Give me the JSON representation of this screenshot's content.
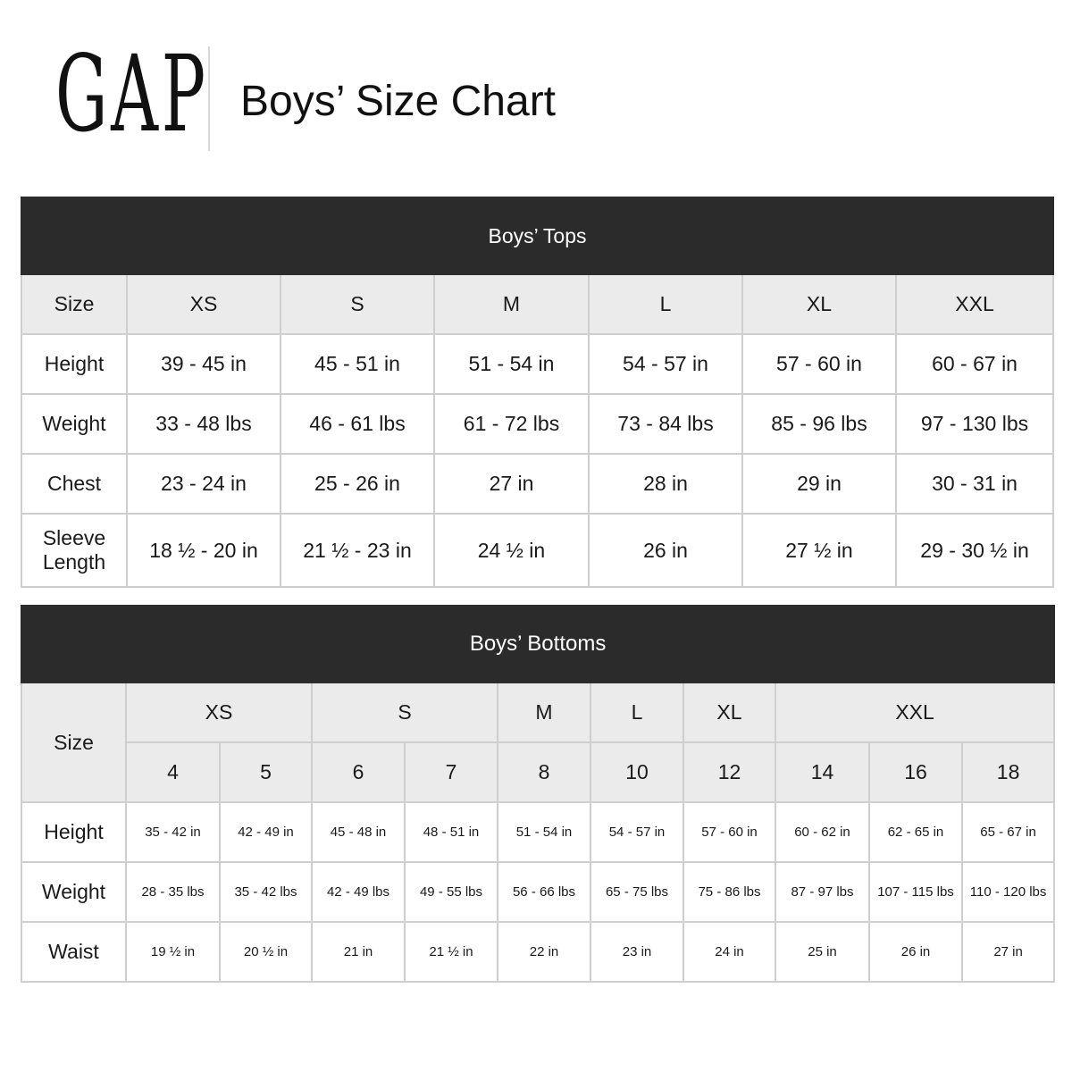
{
  "header": {
    "logo_text": "GAP",
    "title": "Boys’ Size Chart"
  },
  "tops": {
    "title": "Boys’ Tops",
    "columns": [
      "Size",
      "XS",
      "S",
      "M",
      "L",
      "XL",
      "XXL"
    ],
    "rows": [
      {
        "label": "Height",
        "values": [
          "39 - 45 in",
          "45 - 51 in",
          "51 - 54 in",
          "54 - 57 in",
          "57 - 60 in",
          "60 - 67 in"
        ]
      },
      {
        "label": "Weight",
        "values": [
          "33 - 48 lbs",
          "46 - 61 lbs",
          "61 - 72 lbs",
          "73 - 84 lbs",
          "85 - 96 lbs",
          "97 - 130 lbs"
        ]
      },
      {
        "label": "Chest",
        "values": [
          "23 - 24 in",
          "25 - 26 in",
          "27 in",
          "28 in",
          "29 in",
          "30 - 31 in"
        ]
      },
      {
        "label": "Sleeve Length",
        "values": [
          "18 ½ - 20 in",
          "21 ½ - 23 in",
          "24 ½ in",
          "26 in",
          "27 ½ in",
          "29 - 30 ½ in"
        ]
      }
    ]
  },
  "bottoms": {
    "title": "Boys’ Bottoms",
    "size_label": "Size",
    "size_groups": [
      {
        "label": "XS",
        "span": 2
      },
      {
        "label": "S",
        "span": 2
      },
      {
        "label": "M",
        "span": 1
      },
      {
        "label": "L",
        "span": 1
      },
      {
        "label": "XL",
        "span": 1
      },
      {
        "label": "XXL",
        "span": 3
      }
    ],
    "numeric_sizes": [
      "4",
      "5",
      "6",
      "7",
      "8",
      "10",
      "12",
      "14",
      "16",
      "18"
    ],
    "rows": [
      {
        "label": "Height",
        "values": [
          "35 - 42 in",
          "42 - 49 in",
          "45 - 48 in",
          "48 - 51 in",
          "51 - 54 in",
          "54 - 57 in",
          "57 - 60 in",
          "60 - 62 in",
          "62 - 65 in",
          "65 - 67 in"
        ]
      },
      {
        "label": "Weight",
        "values": [
          "28 - 35 lbs",
          "35 - 42 lbs",
          "42 - 49 lbs",
          "49 - 55 lbs",
          "56 - 66 lbs",
          "65 - 75 lbs",
          "75 - 86 lbs",
          "87 - 97 lbs",
          "107 - 115 lbs",
          "110 - 120 lbs"
        ]
      },
      {
        "label": "Waist",
        "values": [
          "19 ½ in",
          "20 ½ in",
          "21 in",
          "21 ½ in",
          "22 in",
          "23 in",
          "24 in",
          "25 in",
          "26 in",
          "27 in"
        ]
      }
    ]
  },
  "colors": {
    "header_bg": "#2b2b2b",
    "size_row_bg": "#ebebeb",
    "border": "#cfcfcf"
  }
}
